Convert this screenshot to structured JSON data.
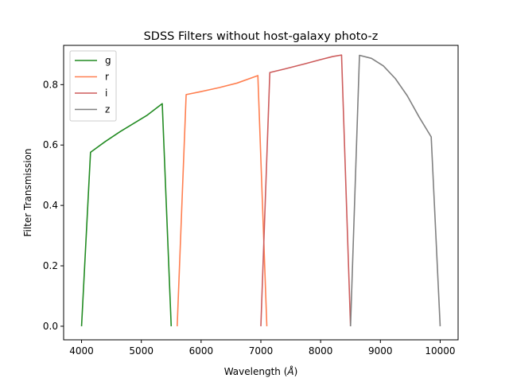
{
  "chart_data": {
    "type": "line",
    "title": "SDSS Filters without host-galaxy photo-z",
    "xlabel": "Wavelength (",
    "xlabel_unit": "Å",
    "xlabel_close": ")",
    "ylabel": "Filter Transmission",
    "xlim": [
      3700,
      10300
    ],
    "ylim": [
      -0.045,
      0.93
    ],
    "xticks": [
      4000,
      5000,
      6000,
      7000,
      8000,
      9000,
      10000
    ],
    "xtick_labels": [
      "4000",
      "5000",
      "6000",
      "7000",
      "8000",
      "9000",
      "10000"
    ],
    "yticks": [
      0.0,
      0.2,
      0.4,
      0.6,
      0.8
    ],
    "ytick_labels": [
      "0.0",
      "0.2",
      "0.4",
      "0.6",
      "0.8"
    ],
    "grid": false,
    "legend_position": "top-left",
    "series": [
      {
        "name": "g",
        "color": "#228b22",
        "points": [
          [
            4000,
            0.0
          ],
          [
            4150,
            0.576
          ],
          [
            4400,
            0.612
          ],
          [
            4650,
            0.645
          ],
          [
            4900,
            0.675
          ],
          [
            5100,
            0.699
          ],
          [
            5350,
            0.737
          ],
          [
            5500,
            0.0
          ]
        ]
      },
      {
        "name": "r",
        "color": "#ff7f50",
        "points": [
          [
            5600,
            0.0
          ],
          [
            5750,
            0.767
          ],
          [
            6000,
            0.777
          ],
          [
            6300,
            0.79
          ],
          [
            6600,
            0.805
          ],
          [
            6950,
            0.83
          ],
          [
            7100,
            0.0
          ]
        ]
      },
      {
        "name": "i",
        "color": "#cd5c5c",
        "points": [
          [
            7000,
            0.0
          ],
          [
            7150,
            0.84
          ],
          [
            7400,
            0.852
          ],
          [
            7700,
            0.867
          ],
          [
            8000,
            0.883
          ],
          [
            8200,
            0.893
          ],
          [
            8350,
            0.898
          ],
          [
            8500,
            0.0
          ]
        ]
      },
      {
        "name": "z",
        "color": "#808080",
        "points": [
          [
            8500,
            0.0
          ],
          [
            8650,
            0.897
          ],
          [
            8850,
            0.887
          ],
          [
            9050,
            0.862
          ],
          [
            9250,
            0.82
          ],
          [
            9450,
            0.763
          ],
          [
            9650,
            0.692
          ],
          [
            9850,
            0.627
          ],
          [
            10000,
            0.0
          ]
        ]
      }
    ]
  }
}
